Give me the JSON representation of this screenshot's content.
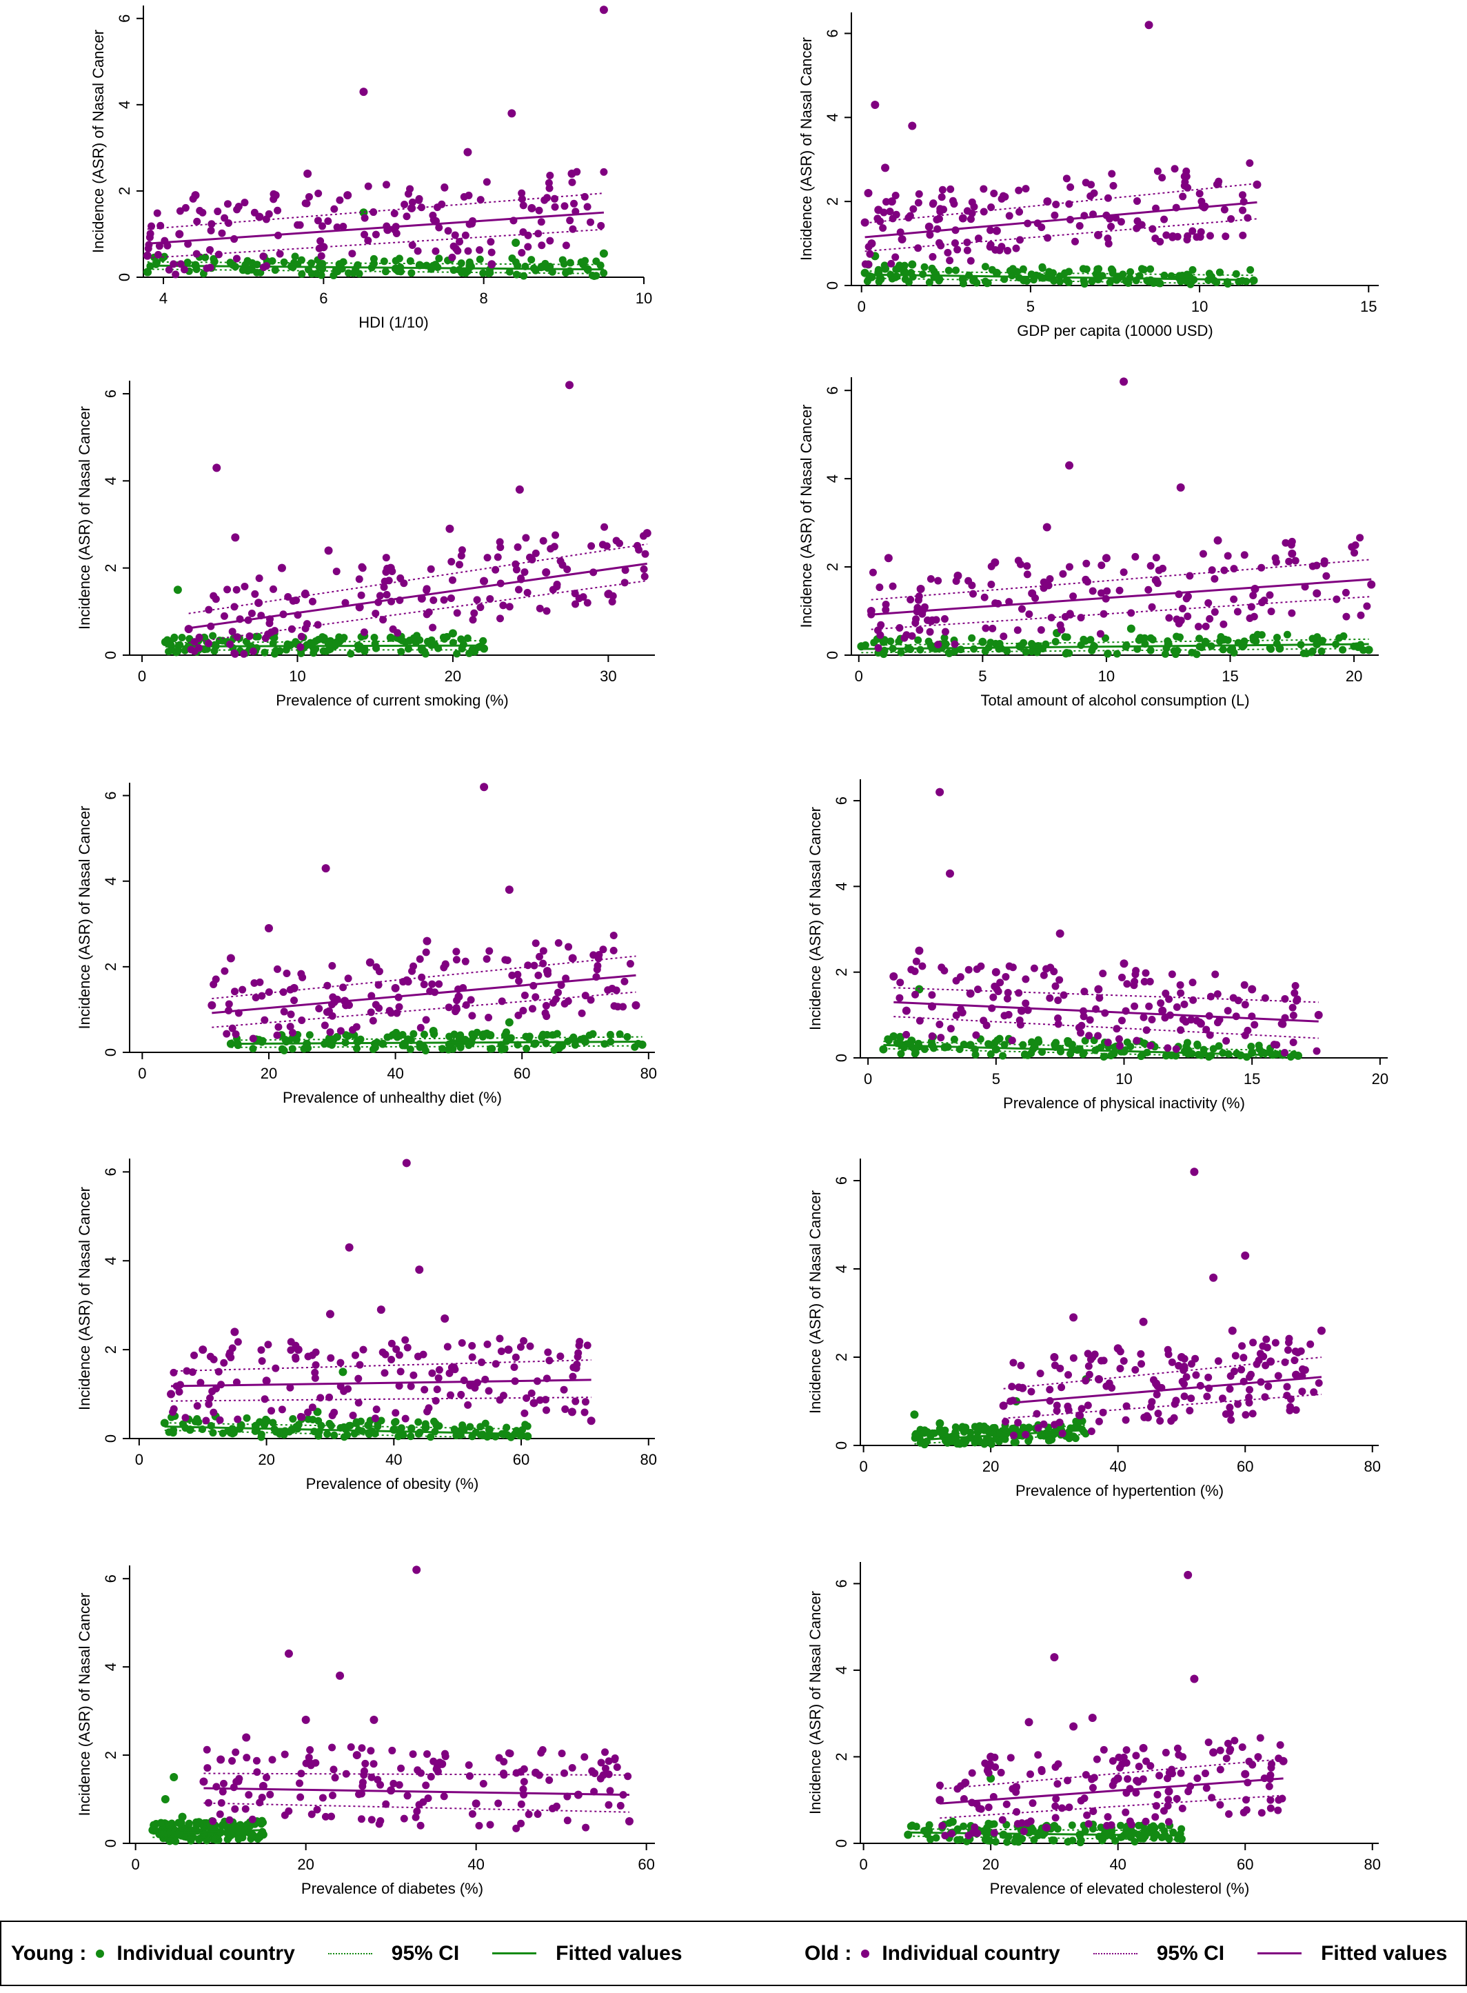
{
  "colors": {
    "young": "#138a13",
    "old": "#800080"
  },
  "legend": {
    "young_title": "Young :",
    "old_title": "Old :",
    "individual": "Individual country",
    "ci": "95% CI",
    "fitted": "Fitted values"
  },
  "chart_data": [
    {
      "type": "scatter",
      "ylabel": "Incidence (ASR) of Nasal Cancer",
      "xlabel": "HDI (1/10)",
      "xlim": [
        3.75,
        10
      ],
      "xticks": [
        4,
        6,
        8,
        10
      ],
      "ylim": [
        0,
        6.3
      ],
      "yticks": [
        0,
        2,
        4,
        6
      ],
      "series": [
        {
          "group": "young",
          "x": [
            3.8,
            4.4,
            4.6,
            5.1,
            5.3,
            5.6,
            6.2,
            6.5,
            6.9,
            7.2,
            7.8,
            8.4,
            8.8,
            9.3,
            9.5
          ],
          "y": [
            0.12,
            0.28,
            0.22,
            0.18,
            0.35,
            0.25,
            0.3,
            1.5,
            0.2,
            0.28,
            0.15,
            0.8,
            0.22,
            0.18,
            0.55
          ],
          "fit_start": 0.27,
          "fit_end": 0.18
        },
        {
          "group": "old",
          "x": [
            3.8,
            4.2,
            4.4,
            5.2,
            5.4,
            5.8,
            6.0,
            6.3,
            6.5,
            6.8,
            7.1,
            7.4,
            7.8,
            8.1,
            8.35,
            8.6,
            9.1,
            9.5
          ],
          "y": [
            0.5,
            1.0,
            1.9,
            1.4,
            1.9,
            2.4,
            0.7,
            1.9,
            4.3,
            1.1,
            1.6,
            1.3,
            2.9,
            0.3,
            3.8,
            1.6,
            2.4,
            6.2
          ],
          "fit_start": 0.78,
          "fit_end": 1.5
        }
      ]
    },
    {
      "type": "scatter",
      "ylabel": "Incidence (ASR) of Nasal Cancer",
      "xlabel": "GDP per capita (10000 USD)",
      "xlim": [
        -0.3,
        15.3
      ],
      "xticks": [
        0,
        5,
        10,
        15
      ],
      "ylim": [
        0,
        6.5
      ],
      "yticks": [
        0,
        2,
        4,
        6
      ],
      "series": [
        {
          "group": "young",
          "x": [
            0.1,
            0.2,
            0.3,
            0.4,
            0.5,
            0.7,
            1.0,
            1.5,
            2.2,
            3.0,
            4.0,
            5.5,
            7.0,
            8.5,
            11.6
          ],
          "y": [
            0.3,
            0.5,
            0.2,
            0.7,
            0.3,
            0.4,
            0.2,
            0.5,
            0.25,
            0.15,
            0.3,
            0.2,
            0.15,
            0.1,
            0.12
          ],
          "fit_start": 0.26,
          "fit_end": 0.13
        },
        {
          "group": "old",
          "x": [
            0.1,
            0.2,
            0.3,
            0.4,
            0.5,
            0.7,
            0.9,
            1.2,
            1.5,
            2.0,
            3.0,
            4.0,
            5.5,
            7.0,
            8.5,
            11.7
          ],
          "y": [
            1.5,
            2.2,
            1.0,
            4.3,
            1.8,
            2.8,
            2.0,
            1.1,
            3.8,
            1.4,
            1.6,
            1.3,
            2.0,
            1.2,
            6.2,
            2.4
          ],
          "fit_start": 1.15,
          "fit_end": 1.98
        }
      ]
    },
    {
      "type": "scatter",
      "ylabel": "Incidence (ASR) of Nasal Cancer",
      "xlabel": "Prevalence of current smoking (%)",
      "xlim": [
        -0.8,
        33
      ],
      "xticks": [
        0,
        10,
        20,
        30
      ],
      "ylim": [
        0,
        6.3
      ],
      "yticks": [
        0,
        2,
        4,
        6
      ],
      "series": [
        {
          "group": "young",
          "x": [
            1.5,
            2.3,
            3.0,
            4.0,
            5.5,
            7.0,
            8.5,
            10.0,
            12.0,
            14.0,
            16.0,
            18.0,
            20.0,
            22.0
          ],
          "y": [
            0.3,
            1.5,
            0.2,
            0.4,
            0.3,
            0.2,
            0.5,
            0.25,
            0.3,
            0.2,
            0.4,
            0.15,
            0.5,
            0.15
          ],
          "fit_start": 0.2,
          "fit_end": 0.22
        },
        {
          "group": "old",
          "x": [
            3.0,
            4.8,
            6.0,
            7.5,
            9.0,
            10.5,
            12.0,
            14.0,
            16.0,
            18.0,
            19.8,
            22.0,
            24.3,
            26.0,
            27.5,
            30.0,
            32.5
          ],
          "y": [
            0.6,
            4.3,
            2.7,
            1.2,
            2.0,
            1.4,
            2.4,
            1.1,
            2.0,
            1.3,
            2.9,
            1.7,
            3.8,
            1.9,
            6.2,
            1.4,
            2.8
          ],
          "fit_start": 0.62,
          "fit_end": 2.1
        }
      ]
    },
    {
      "type": "scatter",
      "ylabel": "Incidence (ASR) of Nasal Cancer",
      "xlabel": "Total amount of alcohol consumption (L)",
      "xlim": [
        -0.3,
        21
      ],
      "xticks": [
        0,
        5,
        10,
        15,
        20
      ],
      "ylim": [
        0,
        6.3
      ],
      "yticks": [
        0,
        2,
        4,
        6
      ],
      "series": [
        {
          "group": "young",
          "x": [
            0.1,
            1.0,
            2.0,
            3.5,
            5.0,
            6.5,
            8.0,
            9.5,
            11.0,
            12.5,
            14.0,
            15.5,
            17.0,
            18.5,
            20.6
          ],
          "y": [
            0.2,
            0.3,
            0.15,
            0.25,
            0.3,
            0.2,
            0.5,
            0.2,
            0.6,
            0.25,
            0.3,
            0.2,
            0.15,
            0.25,
            0.12
          ],
          "fit_start": 0.14,
          "fit_end": 0.25
        },
        {
          "group": "old",
          "x": [
            0.5,
            1.2,
            2.5,
            4.0,
            5.5,
            7.0,
            7.6,
            8.5,
            10.0,
            10.7,
            12.0,
            13.0,
            14.5,
            16.0,
            17.5,
            18.5,
            20.7
          ],
          "y": [
            1.0,
            2.2,
            1.5,
            1.8,
            2.1,
            1.4,
            2.9,
            4.3,
            2.2,
            6.2,
            1.7,
            3.8,
            2.6,
            1.5,
            2.3,
            1.4,
            1.6
          ],
          "fit_start": 0.92,
          "fit_end": 1.72
        }
      ]
    },
    {
      "type": "scatter",
      "ylabel": "Incidence (ASR) of Nasal Cancer",
      "xlabel": "Prevalence of unhealthy diet (%)",
      "xlim": [
        -2,
        81
      ],
      "xticks": [
        0,
        20,
        40,
        60,
        80
      ],
      "ylim": [
        0,
        6.3
      ],
      "yticks": [
        0,
        2,
        4,
        6
      ],
      "series": [
        {
          "group": "young",
          "x": [
            14.0,
            18.0,
            22.0,
            26.0,
            30.0,
            34.0,
            38.0,
            42.0,
            46.0,
            50.0,
            55.0,
            58.0,
            62.0,
            70.0,
            79.0
          ],
          "y": [
            0.2,
            0.3,
            0.4,
            0.2,
            0.3,
            0.25,
            0.2,
            0.3,
            0.5,
            0.2,
            0.4,
            0.7,
            0.2,
            0.25,
            0.18
          ],
          "fit_start": 0.2,
          "fit_end": 0.25
        },
        {
          "group": "old",
          "x": [
            11.0,
            14.0,
            20.0,
            24.0,
            29.0,
            32.0,
            36.0,
            40.0,
            45.0,
            50.0,
            54.0,
            58.0,
            64.0,
            68.0,
            78.0
          ],
          "y": [
            1.1,
            2.2,
            2.9,
            1.5,
            4.3,
            1.2,
            2.1,
            1.5,
            2.6,
            1.3,
            6.2,
            3.8,
            1.9,
            2.2,
            1.1
          ],
          "fit_start": 0.92,
          "fit_end": 1.8
        }
      ]
    },
    {
      "type": "scatter",
      "ylabel": "Incidence (ASR) of Nasal Cancer",
      "xlabel": "Prevalence of physical inactivity (%)",
      "xlim": [
        -0.3,
        20.3
      ],
      "xticks": [
        0,
        5,
        10,
        15,
        20
      ],
      "ylim": [
        0,
        6.5
      ],
      "yticks": [
        0,
        2,
        4,
        6
      ],
      "series": [
        {
          "group": "young",
          "x": [
            0.6,
            1.0,
            1.3,
            1.7,
            2.0,
            2.5,
            3.0,
            4.0,
            5.0,
            6.5,
            8.0,
            10.0,
            12.5,
            15.0,
            16.8
          ],
          "y": [
            0.2,
            0.5,
            0.3,
            0.4,
            1.6,
            0.3,
            0.25,
            0.3,
            0.2,
            0.25,
            0.2,
            0.15,
            0.1,
            0.12,
            0.05
          ],
          "fit_start": 0.3,
          "fit_end": 0.05
        },
        {
          "group": "old",
          "x": [
            1.0,
            1.5,
            2.0,
            2.5,
            2.8,
            3.2,
            4.0,
            5.0,
            6.0,
            7.5,
            9.0,
            10.0,
            11.5,
            13.0,
            15.0,
            17.6
          ],
          "y": [
            1.9,
            1.1,
            2.5,
            1.2,
            6.2,
            4.3,
            1.5,
            2.0,
            1.1,
            2.9,
            1.6,
            2.2,
            1.1,
            0.8,
            1.6,
            1.0
          ],
          "fit_start": 1.3,
          "fit_end": 0.85
        }
      ]
    },
    {
      "type": "scatter",
      "ylabel": "Incidence (ASR) of Nasal Cancer",
      "xlabel": "Prevalence of obesity (%)",
      "xlim": [
        -1.5,
        81
      ],
      "xticks": [
        0,
        20,
        40,
        60,
        80
      ],
      "ylim": [
        0,
        6.3
      ],
      "yticks": [
        0,
        2,
        4,
        6
      ],
      "series": [
        {
          "group": "young",
          "x": [
            4.0,
            8.0,
            12.0,
            16.0,
            20.0,
            24.0,
            28.0,
            32.0,
            36.0,
            40.0,
            45.0,
            50.0,
            55.0,
            61.0
          ],
          "y": [
            0.35,
            0.2,
            0.5,
            0.3,
            0.4,
            0.2,
            0.6,
            1.5,
            0.3,
            0.2,
            0.25,
            0.15,
            0.2,
            0.05
          ],
          "fit_start": 0.27,
          "fit_end": 0.1
        },
        {
          "group": "old",
          "x": [
            5.0,
            10.0,
            15.0,
            20.0,
            25.0,
            30.0,
            33.0,
            38.0,
            42.0,
            44.0,
            48.0,
            52.0,
            58.0,
            62.0,
            68.0,
            71.0
          ],
          "y": [
            1.0,
            2.0,
            2.4,
            1.3,
            2.0,
            2.8,
            4.3,
            2.9,
            6.2,
            3.8,
            2.7,
            1.2,
            2.0,
            0.8,
            0.6,
            0.4
          ],
          "fit_start": 1.18,
          "fit_end": 1.32
        }
      ]
    },
    {
      "type": "scatter",
      "ylabel": "Incidence (ASR) of Nasal Cancer",
      "xlabel": "Prevalence of hypertention (%)",
      "xlim": [
        -0.5,
        81
      ],
      "xticks": [
        0,
        20,
        40,
        60,
        80
      ],
      "ylim": [
        0,
        6.5
      ],
      "yticks": [
        0,
        2,
        4,
        6
      ],
      "series": [
        {
          "group": "young",
          "x": [
            8.0,
            10.0,
            12.0,
            14.0,
            16.0,
            18.0,
            20.0,
            22.0,
            24.0,
            26.0,
            28.0,
            30.0,
            33.0,
            35.0
          ],
          "y": [
            0.7,
            0.3,
            0.5,
            0.2,
            0.4,
            0.15,
            0.3,
            0.2,
            1.0,
            0.4,
            0.25,
            0.3,
            0.2,
            1.5
          ],
          "fit_start": 0.12,
          "fit_end": 0.35
        },
        {
          "group": "old",
          "x": [
            22.0,
            25.0,
            30.0,
            33.0,
            37.0,
            40.0,
            44.0,
            46.0,
            50.0,
            52.0,
            55.0,
            58.0,
            60.0,
            64.0,
            68.0,
            72.0
          ],
          "y": [
            0.9,
            1.3,
            2.0,
            2.9,
            1.5,
            2.2,
            2.8,
            1.4,
            2.0,
            6.2,
            3.8,
            2.6,
            4.3,
            1.9,
            1.6,
            2.6
          ],
          "fit_start": 0.95,
          "fit_end": 1.55
        }
      ]
    },
    {
      "type": "scatter",
      "ylabel": "Incidence (ASR) of Nasal Cancer",
      "xlabel": "Prevalence of diabetes (%)",
      "xlim": [
        -0.7,
        61
      ],
      "xticks": [
        0,
        20,
        40,
        60
      ],
      "ylim": [
        0,
        6.3
      ],
      "yticks": [
        0,
        2,
        4,
        6
      ],
      "series": [
        {
          "group": "young",
          "x": [
            2.0,
            3.0,
            3.5,
            4.0,
            4.5,
            5.0,
            5.5,
            6.0,
            7.0,
            8.0,
            9.0,
            10.0,
            12.0,
            15.0
          ],
          "y": [
            0.3,
            0.2,
            1.0,
            0.4,
            1.5,
            0.2,
            0.6,
            0.15,
            0.3,
            0.2,
            0.5,
            0.25,
            0.3,
            0.2
          ],
          "fit_start": 0.22,
          "fit_end": 0.3
        },
        {
          "group": "old",
          "x": [
            8.0,
            10.0,
            13.0,
            15.0,
            18.0,
            20.0,
            24.0,
            26.0,
            28.0,
            30.0,
            33.0,
            36.0,
            40.0,
            47.0,
            52.0,
            58.0
          ],
          "y": [
            1.4,
            1.9,
            2.4,
            1.3,
            4.3,
            2.8,
            3.8,
            2.0,
            2.8,
            1.2,
            6.2,
            1.8,
            0.9,
            1.6,
            1.1,
            0.5
          ],
          "fit_start": 1.25,
          "fit_end": 1.1
        }
      ]
    },
    {
      "type": "scatter",
      "ylabel": "Incidence (ASR) of Nasal Cancer",
      "xlabel": "Prevalence of elevated cholesterol (%)",
      "xlim": [
        -0.5,
        81
      ],
      "xticks": [
        0,
        20,
        40,
        60,
        80
      ],
      "ylim": [
        0,
        6.5
      ],
      "yticks": [
        0,
        2,
        4,
        6
      ],
      "series": [
        {
          "group": "young",
          "x": [
            7.0,
            10.0,
            14.0,
            18.0,
            20.0,
            22.0,
            26.0,
            30.0,
            34.0,
            38.0,
            42.0,
            46.0,
            50.0
          ],
          "y": [
            0.2,
            0.3,
            0.5,
            0.3,
            1.5,
            0.2,
            0.25,
            0.4,
            0.2,
            0.3,
            0.15,
            0.2,
            0.1
          ],
          "fit_start": 0.25,
          "fit_end": 0.18
        },
        {
          "group": "old",
          "x": [
            12.0,
            16.0,
            20.0,
            24.0,
            26.0,
            30.0,
            33.0,
            36.0,
            40.0,
            44.0,
            48.0,
            51.0,
            52.0,
            55.0,
            60.0,
            66.0
          ],
          "y": [
            1.0,
            1.4,
            2.0,
            1.3,
            2.8,
            4.3,
            2.7,
            2.9,
            1.5,
            2.2,
            1.2,
            6.2,
            3.8,
            2.1,
            1.6,
            1.9
          ],
          "fit_start": 0.92,
          "fit_end": 1.5
        }
      ]
    }
  ]
}
